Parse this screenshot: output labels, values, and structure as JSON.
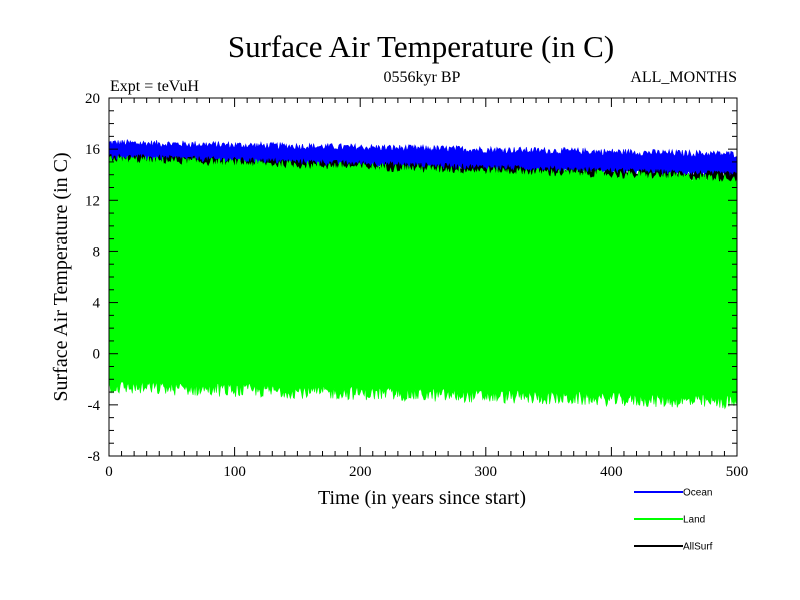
{
  "chart_data": {
    "type": "line",
    "title": "Surface Air Temperature (in C)",
    "subtitle_left": "Expt = teVuH",
    "subtitle_center": "0556kyr BP",
    "subtitle_right": "ALL_MONTHS",
    "xlabel": "Time (in years since start)",
    "ylabel": "Surface Air Temperature (in C)",
    "xlim": [
      0,
      500
    ],
    "ylim": [
      -8,
      20
    ],
    "xticks": [
      0,
      100,
      200,
      300,
      400,
      500
    ],
    "yticks": [
      -8,
      -4,
      0,
      4,
      8,
      12,
      16,
      20
    ],
    "legend_position": "bottom-right",
    "series": [
      {
        "name": "Ocean",
        "color": "#0000ff",
        "upper_start": 16.5,
        "upper_end": 15.6,
        "lower_start": 14.9,
        "lower_end": 14.0
      },
      {
        "name": "Land",
        "color": "#00ff00",
        "upper_start": 15.2,
        "upper_end": 13.7,
        "lower_start": -2.6,
        "lower_end": -3.8
      },
      {
        "name": "AllSurf",
        "color": "#000000",
        "upper_start": 15.4,
        "upper_end": 14.0,
        "lower_start": 14.6,
        "lower_end": 13.5
      }
    ]
  }
}
